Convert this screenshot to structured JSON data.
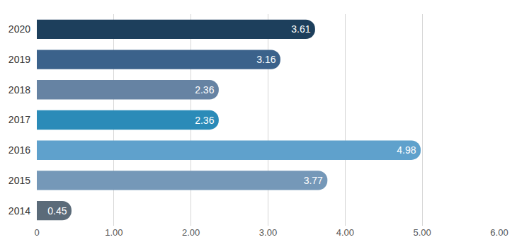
{
  "chart_data": {
    "type": "bar",
    "orientation": "horizontal",
    "categories": [
      "2014",
      "2015",
      "2016",
      "2017",
      "2018",
      "2019",
      "2020"
    ],
    "values": [
      0.45,
      3.77,
      4.98,
      2.36,
      2.36,
      3.16,
      3.61
    ],
    "colors": [
      "#5b6b79",
      "#7598b8",
      "#5fa1cc",
      "#2b8bb8",
      "#6683a3",
      "#3b628b",
      "#1d3f5c"
    ],
    "xlim": [
      0,
      6
    ],
    "xticks": [
      0,
      {
        "value": 1,
        "label": "1.00"
      },
      {
        "value": 2,
        "label": "2.00"
      },
      {
        "value": 3,
        "label": "3.00"
      },
      {
        "value": 4,
        "label": "4.00"
      },
      {
        "value": 5,
        "label": "5.00"
      },
      {
        "value": 6,
        "label": "6.00"
      }
    ],
    "grid": true,
    "data_labels": true
  }
}
